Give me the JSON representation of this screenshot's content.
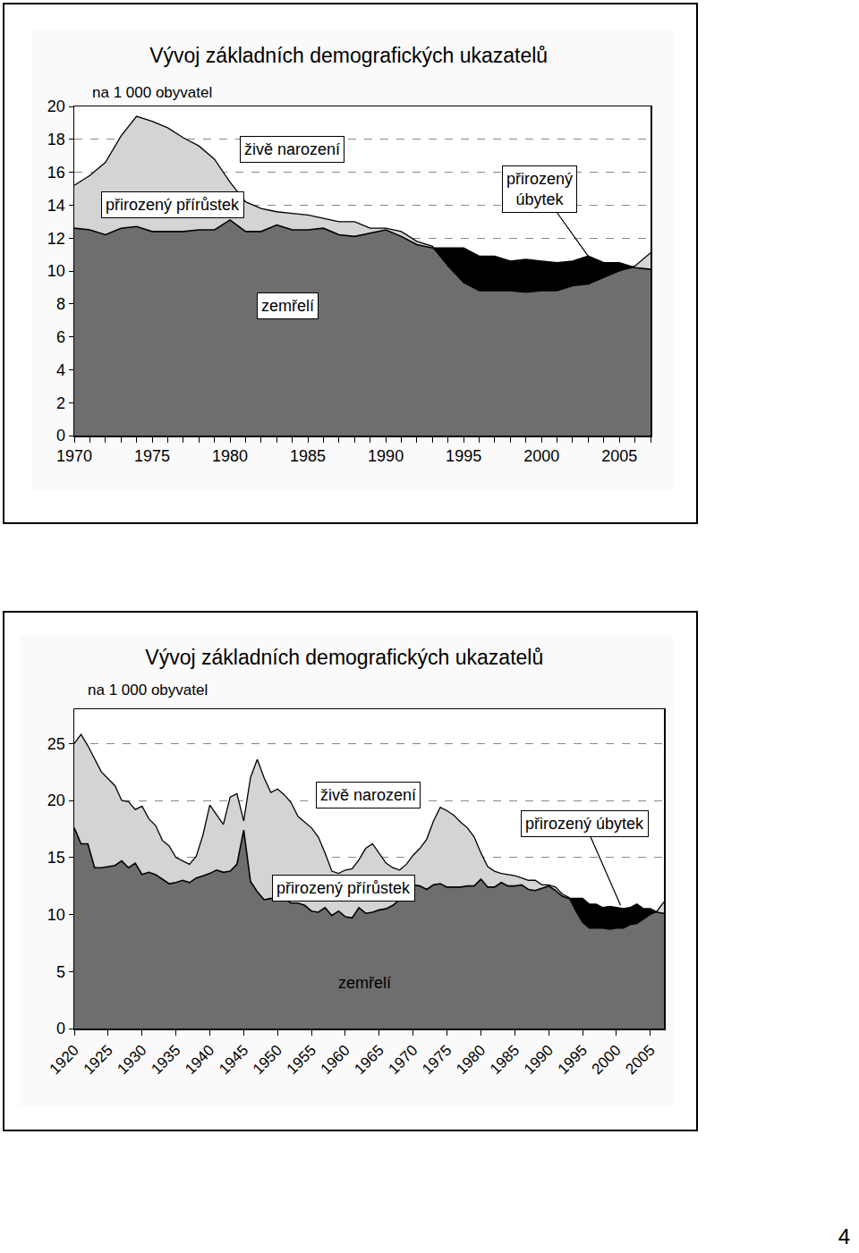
{
  "chart_data": [
    {
      "type": "area",
      "title": "Vývoj základních demografických ukazatelů",
      "subtitle": "na 1 000 obyvatel",
      "x": [
        1970,
        1971,
        1972,
        1973,
        1974,
        1975,
        1976,
        1977,
        1978,
        1979,
        1980,
        1981,
        1982,
        1983,
        1984,
        1985,
        1986,
        1987,
        1988,
        1989,
        1990,
        1991,
        1992,
        1993,
        1994,
        1995,
        1996,
        1997,
        1998,
        1999,
        2000,
        2001,
        2002,
        2003,
        2004,
        2005,
        2006,
        2007
      ],
      "series": [
        {
          "name": "živě narození",
          "color": "#d4d4d4",
          "values": [
            15.2,
            15.8,
            16.6,
            18.2,
            19.4,
            19.1,
            18.7,
            18.1,
            17.6,
            16.8,
            15.4,
            14.2,
            13.8,
            13.6,
            13.5,
            13.4,
            13.2,
            13.0,
            13.0,
            12.6,
            12.6,
            12.4,
            11.8,
            11.5,
            10.3,
            9.3,
            8.8,
            8.8,
            8.8,
            8.7,
            8.8,
            8.8,
            9.1,
            9.2,
            9.6,
            10.0,
            10.3,
            11.1
          ]
        },
        {
          "name": "zemřelí",
          "color": "#6e6e6e",
          "values": [
            12.6,
            12.5,
            12.2,
            12.6,
            12.7,
            12.4,
            12.4,
            12.4,
            12.5,
            12.5,
            13.1,
            12.4,
            12.4,
            12.8,
            12.5,
            12.5,
            12.6,
            12.2,
            12.1,
            12.3,
            12.5,
            12.1,
            11.6,
            11.4,
            11.4,
            11.4,
            10.9,
            10.9,
            10.6,
            10.7,
            10.6,
            10.5,
            10.6,
            10.9,
            10.5,
            10.5,
            10.2,
            10.1
          ]
        }
      ],
      "annotations": [
        {
          "text": "přirozený přírůstek"
        },
        {
          "text": "přirozený\núbytek",
          "color": "#000000"
        }
      ],
      "xlim": [
        1970,
        2007
      ],
      "xticks": [
        1970,
        1975,
        1980,
        1985,
        1990,
        1995,
        2000,
        2005
      ],
      "ylim": [
        0,
        20
      ],
      "yticks": [
        0,
        2,
        4,
        6,
        8,
        10,
        12,
        14,
        16,
        18,
        20
      ],
      "grid": true
    },
    {
      "type": "area",
      "title": "Vývoj základních demografických ukazatelů",
      "subtitle": "na 1 000 obyvatel",
      "x": [
        1920,
        1921,
        1922,
        1923,
        1924,
        1925,
        1926,
        1927,
        1928,
        1929,
        1930,
        1931,
        1932,
        1933,
        1934,
        1935,
        1936,
        1937,
        1938,
        1939,
        1940,
        1941,
        1942,
        1943,
        1944,
        1945,
        1946,
        1947,
        1948,
        1949,
        1950,
        1951,
        1952,
        1953,
        1954,
        1955,
        1956,
        1957,
        1958,
        1959,
        1960,
        1961,
        1962,
        1963,
        1964,
        1965,
        1966,
        1967,
        1968,
        1969,
        1970,
        1971,
        1972,
        1973,
        1974,
        1975,
        1976,
        1977,
        1978,
        1979,
        1980,
        1981,
        1982,
        1983,
        1984,
        1985,
        1986,
        1987,
        1988,
        1989,
        1990,
        1991,
        1992,
        1993,
        1994,
        1995,
        1996,
        1997,
        1998,
        1999,
        2000,
        2001,
        2002,
        2003,
        2004,
        2005,
        2006,
        2007
      ],
      "series": [
        {
          "name": "živě narození",
          "color": "#d4d4d4",
          "values": [
            25.0,
            25.8,
            24.8,
            23.7,
            22.5,
            21.9,
            21.3,
            20.0,
            19.9,
            19.2,
            19.5,
            18.4,
            17.8,
            16.5,
            16.0,
            15.0,
            14.7,
            14.4,
            15.1,
            17.0,
            19.6,
            18.7,
            17.9,
            20.3,
            20.6,
            18.2,
            22.0,
            23.6,
            22.0,
            20.7,
            21.0,
            20.5,
            19.8,
            18.6,
            18.1,
            17.6,
            16.8,
            15.4,
            13.8,
            13.6,
            13.9,
            14.0,
            14.8,
            15.8,
            16.2,
            15.3,
            14.5,
            14.1,
            13.9,
            14.4,
            15.2,
            15.8,
            16.6,
            18.2,
            19.4,
            19.1,
            18.7,
            18.1,
            17.6,
            16.8,
            15.4,
            14.2,
            13.8,
            13.6,
            13.5,
            13.4,
            13.2,
            13.0,
            13.0,
            12.6,
            12.6,
            12.4,
            11.8,
            11.5,
            10.3,
            9.3,
            8.8,
            8.8,
            8.8,
            8.7,
            8.8,
            8.8,
            9.1,
            9.2,
            9.6,
            10.0,
            10.3,
            11.1
          ]
        },
        {
          "name": "zemřelí",
          "color": "#6e6e6e",
          "values": [
            17.6,
            16.2,
            16.2,
            14.1,
            14.1,
            14.2,
            14.3,
            14.7,
            14.1,
            14.5,
            13.5,
            13.7,
            13.5,
            13.1,
            12.7,
            12.8,
            13.0,
            12.8,
            13.2,
            13.4,
            13.6,
            13.9,
            13.7,
            13.8,
            14.4,
            17.4,
            12.9,
            12.0,
            11.3,
            11.4,
            11.5,
            11.4,
            11.0,
            11.0,
            10.8,
            10.3,
            10.2,
            10.6,
            9.9,
            10.3,
            9.8,
            9.7,
            10.6,
            10.1,
            10.2,
            10.4,
            10.5,
            10.8,
            11.3,
            11.8,
            12.6,
            12.5,
            12.2,
            12.6,
            12.7,
            12.4,
            12.4,
            12.4,
            12.5,
            12.5,
            13.1,
            12.4,
            12.4,
            12.8,
            12.5,
            12.5,
            12.6,
            12.2,
            12.1,
            12.3,
            12.5,
            12.1,
            11.6,
            11.4,
            11.4,
            11.4,
            10.9,
            10.9,
            10.6,
            10.7,
            10.6,
            10.5,
            10.6,
            10.9,
            10.5,
            10.5,
            10.2,
            10.1
          ]
        }
      ],
      "annotations": [
        {
          "text": "přirozený přírůstek"
        },
        {
          "text": "přirozený úbytek",
          "color": "#000000"
        }
      ],
      "xlim": [
        1920,
        2007
      ],
      "xticks": [
        1920,
        1925,
        1930,
        1935,
        1940,
        1945,
        1950,
        1955,
        1960,
        1965,
        1970,
        1975,
        1980,
        1985,
        1990,
        1995,
        2000,
        2005
      ],
      "ylim": [
        0,
        28
      ],
      "yticks": [
        0,
        5,
        10,
        15,
        20,
        25
      ],
      "grid": true
    }
  ],
  "page": {
    "number": "4"
  }
}
